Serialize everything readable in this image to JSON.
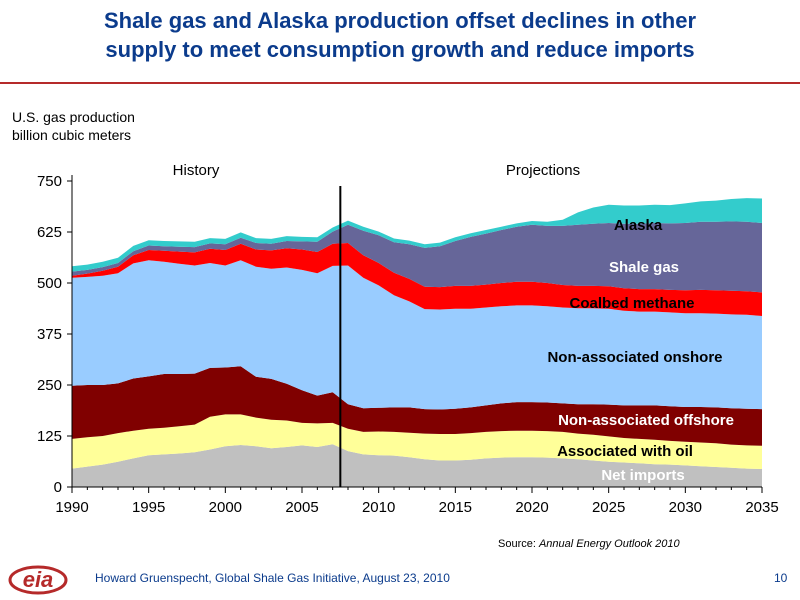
{
  "slide": {
    "title_line1": "Shale gas and Alaska production offset declines in other",
    "title_line2": "supply to meet consumption growth and reduce imports",
    "source_prefix": "Source: ",
    "source_title": "Annual Energy Outlook 2010",
    "footer": "Howard Gruenspecht, Global Shale Gas Initiative, August 23, 2010",
    "page_number": "10",
    "logo_text": "eia",
    "accent_color": "#b52a2a",
    "title_color": "#0b3b8c"
  },
  "chart_data": {
    "type": "area",
    "stacked": true,
    "ylabel_line1": "U.S. gas production",
    "ylabel_line2": "billion cubic meters",
    "ylim": [
      0,
      750
    ],
    "xlim": [
      1990,
      2035
    ],
    "yticks": [
      0,
      125,
      250,
      375,
      500,
      625,
      750
    ],
    "xticks": [
      1990,
      1995,
      2000,
      2005,
      2010,
      2015,
      2020,
      2025,
      2030,
      2035
    ],
    "divider_year": 2007.5,
    "period_labels": {
      "history": "History",
      "projections": "Projections"
    },
    "x": [
      1990,
      1991,
      1992,
      1993,
      1994,
      1995,
      1996,
      1997,
      1998,
      1999,
      2000,
      2001,
      2002,
      2003,
      2004,
      2005,
      2006,
      2007,
      2008,
      2009,
      2010,
      2011,
      2012,
      2013,
      2014,
      2015,
      2016,
      2017,
      2018,
      2019,
      2020,
      2021,
      2022,
      2023,
      2024,
      2025,
      2026,
      2027,
      2028,
      2029,
      2030,
      2031,
      2032,
      2033,
      2034,
      2035
    ],
    "series": [
      {
        "name": "Net imports",
        "color": "#c0c0c0",
        "values": [
          45,
          50,
          55,
          62,
          70,
          78,
          80,
          82,
          85,
          92,
          100,
          103,
          100,
          95,
          98,
          102,
          98,
          105,
          88,
          80,
          78,
          77,
          73,
          68,
          65,
          65,
          67,
          70,
          72,
          73,
          73,
          72,
          70,
          68,
          65,
          62,
          60,
          58,
          56,
          55,
          53,
          51,
          49,
          47,
          45,
          44
        ]
      },
      {
        "name": "Associated with oil",
        "color": "#ffff99",
        "values": [
          73,
          72,
          70,
          70,
          68,
          65,
          65,
          67,
          68,
          80,
          78,
          75,
          70,
          70,
          65,
          55,
          58,
          52,
          55,
          55,
          58,
          58,
          60,
          63,
          65,
          65,
          65,
          65,
          65,
          65,
          65,
          65,
          65,
          63,
          63,
          62,
          60,
          60,
          60,
          58,
          58,
          58,
          58,
          57,
          57,
          57
        ]
      },
      {
        "name": "Non-associated offshore",
        "color": "#800000",
        "values": [
          130,
          128,
          125,
          122,
          128,
          128,
          132,
          128,
          125,
          120,
          115,
          118,
          100,
          100,
          90,
          80,
          68,
          75,
          60,
          58,
          58,
          60,
          62,
          60,
          60,
          62,
          63,
          65,
          68,
          70,
          70,
          70,
          70,
          72,
          75,
          78,
          80,
          82,
          84,
          85,
          85,
          87,
          88,
          89,
          90,
          90
        ]
      },
      {
        "name": "Non-associated onshore",
        "color": "#99ccff",
        "values": [
          265,
          265,
          268,
          270,
          282,
          285,
          275,
          270,
          265,
          257,
          250,
          260,
          270,
          270,
          285,
          295,
          300,
          310,
          340,
          320,
          300,
          275,
          260,
          245,
          245,
          245,
          242,
          240,
          238,
          237,
          237,
          236,
          235,
          235,
          235,
          235,
          232,
          230,
          230,
          230,
          230,
          230,
          230,
          230,
          230,
          228
        ]
      },
      {
        "name": "Coalbed methane",
        "color": "#ff0000",
        "values": [
          5,
          8,
          12,
          16,
          20,
          25,
          27,
          30,
          32,
          35,
          38,
          40,
          42,
          45,
          47,
          50,
          52,
          54,
          55,
          55,
          55,
          55,
          55,
          55,
          55,
          56,
          56,
          56,
          57,
          58,
          58,
          57,
          55,
          55,
          55,
          55,
          55,
          55,
          55,
          55,
          56,
          57,
          57,
          58,
          58,
          58
        ]
      },
      {
        "name": "Shale gas",
        "color": "#666699",
        "values": [
          10,
          9,
          9,
          9,
          10,
          11,
          11,
          12,
          13,
          13,
          14,
          15,
          16,
          16,
          18,
          20,
          25,
          30,
          45,
          60,
          68,
          75,
          85,
          95,
          100,
          110,
          120,
          125,
          130,
          135,
          140,
          140,
          145,
          150,
          152,
          155,
          158,
          160,
          162,
          163,
          165,
          167,
          168,
          170,
          170,
          170
        ]
      },
      {
        "name": "Alaska",
        "color": "#33cccc",
        "values": [
          13,
          13,
          13,
          13,
          13,
          13,
          13,
          13,
          13,
          13,
          13,
          13,
          12,
          12,
          12,
          11,
          11,
          10,
          10,
          10,
          9,
          9,
          9,
          9,
          9,
          9,
          9,
          9,
          8,
          8,
          9,
          10,
          15,
          30,
          40,
          45,
          45,
          45,
          45,
          45,
          48,
          50,
          52,
          55,
          58,
          60
        ]
      }
    ],
    "series_labels": {
      "alaska": "Alaska",
      "shale": "Shale gas",
      "coalbed": "Coalbed methane",
      "onshore": "Non-associated onshore",
      "offshore": "Non-associated offshore",
      "assoc": "Associated with oil",
      "imports": "Net imports"
    }
  }
}
